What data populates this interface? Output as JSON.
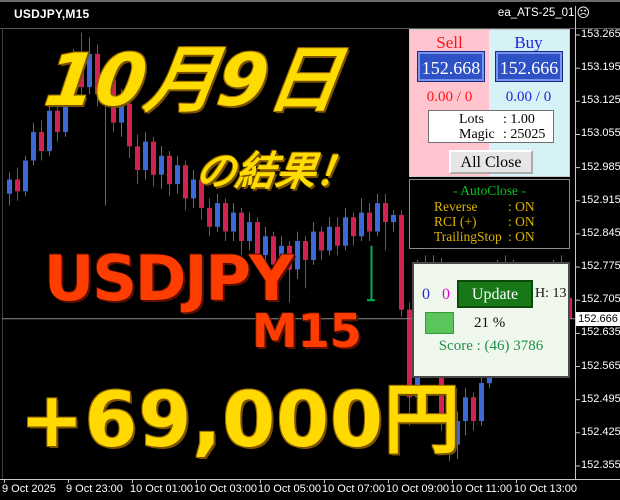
{
  "window": {
    "title": "USDJPY,M15",
    "ea_name": "ea_ATS-25_01",
    "ea_status_icon": "☹"
  },
  "overlay": {
    "date_text": "10月9日",
    "result_text": "の結果！",
    "symbol_text": "USDJPY",
    "timeframe_text": "M15",
    "profit_text": "+69,000円"
  },
  "trade_panel": {
    "sell_label": "Sell",
    "buy_label": "Buy",
    "sell_price": "152.668",
    "buy_price": "152.666",
    "sell_position": "0.00 / 0",
    "buy_position": "0.00 / 0",
    "lots_label": "Lots",
    "lots_value": ": 1.00",
    "magic_label": "Magic",
    "magic_value": ": 25025",
    "all_close_label": "All Close"
  },
  "autoclose_panel": {
    "title": "- AutoClose -",
    "rows": [
      {
        "label": "Reverse",
        "value": ": ON"
      },
      {
        "label": "RCI (+)",
        "value": ": ON"
      },
      {
        "label": "TrailingStop",
        "value": ": ON"
      }
    ]
  },
  "update_panel": {
    "count_blue": "0",
    "count_magenta": "0",
    "update_label": "Update",
    "h_label": "H: 13",
    "percent": "21 %",
    "score": "Score : (46) 3786"
  },
  "axis": {
    "price_labels": [
      "153.265",
      "153.195",
      "153.125",
      "153.055",
      "152.985",
      "152.915",
      "152.845",
      "152.775",
      "152.705",
      "152.635",
      "152.565",
      "152.495",
      "152.425",
      "152.355"
    ],
    "current_price_label": "152.666",
    "time_labels": [
      "9 Oct 2025",
      "9 Oct 23:00",
      "10 Oct 01:00",
      "10 Oct 03:00",
      "10 Oct 05:00",
      "10 Oct 07:00",
      "10 Oct 09:00",
      "10 Oct 11:00",
      "10 Oct 13:00"
    ]
  },
  "chart_data": {
    "type": "candlestick",
    "symbol": "USDJPY",
    "timeframe": "M15",
    "price_axis_top": 153.265,
    "price_axis_bottom": 152.355,
    "price_step": 0.07,
    "current_price": 152.666,
    "candles": [
      [
        152.93,
        152.975,
        152.905,
        152.96
      ],
      [
        152.96,
        152.985,
        152.915,
        152.935
      ],
      [
        152.935,
        153.01,
        152.925,
        153.0
      ],
      [
        153.0,
        153.08,
        152.99,
        153.06
      ],
      [
        153.06,
        153.085,
        153.0,
        153.02
      ],
      [
        153.02,
        153.125,
        153.01,
        153.105
      ],
      [
        153.105,
        153.125,
        153.04,
        153.06
      ],
      [
        153.06,
        153.175,
        153.05,
        153.155
      ],
      [
        153.155,
        153.235,
        153.145,
        153.215
      ],
      [
        153.215,
        153.27,
        153.13,
        153.155
      ],
      [
        153.155,
        153.26,
        153.14,
        153.225
      ],
      [
        153.225,
        153.245,
        153.115,
        153.14
      ],
      [
        153.14,
        153.2,
        152.905,
        153.17
      ],
      [
        153.17,
        153.185,
        153.06,
        153.08
      ],
      [
        153.08,
        153.15,
        153.05,
        153.12
      ],
      [
        153.12,
        153.135,
        153.005,
        153.03
      ],
      [
        153.03,
        153.055,
        152.95,
        152.98
      ],
      [
        152.98,
        153.06,
        152.96,
        153.04
      ],
      [
        153.04,
        153.05,
        152.945,
        152.97
      ],
      [
        152.97,
        153.03,
        152.94,
        153.01
      ],
      [
        153.01,
        153.02,
        152.925,
        152.95
      ],
      [
        152.95,
        153.01,
        152.93,
        152.99
      ],
      [
        152.99,
        153.0,
        152.895,
        152.92
      ],
      [
        152.92,
        152.98,
        152.9,
        152.96
      ],
      [
        152.96,
        152.97,
        152.875,
        152.9
      ],
      [
        152.9,
        152.92,
        152.84,
        152.86
      ],
      [
        152.86,
        152.93,
        152.85,
        152.91
      ],
      [
        152.91,
        152.92,
        152.83,
        152.85
      ],
      [
        152.85,
        152.91,
        152.83,
        152.89
      ],
      [
        152.89,
        152.9,
        152.8,
        152.83
      ],
      [
        152.83,
        152.89,
        152.81,
        152.87
      ],
      [
        152.87,
        152.88,
        152.78,
        152.8
      ],
      [
        152.8,
        152.86,
        152.78,
        152.84
      ],
      [
        152.84,
        152.85,
        152.75,
        152.78
      ],
      [
        152.78,
        152.84,
        152.76,
        152.82
      ],
      [
        152.82,
        152.83,
        152.7,
        152.77
      ],
      [
        152.77,
        152.85,
        152.75,
        152.83
      ],
      [
        152.83,
        152.84,
        152.73,
        152.79
      ],
      [
        152.79,
        152.87,
        152.78,
        152.85
      ],
      [
        152.85,
        152.86,
        152.79,
        152.81
      ],
      [
        152.81,
        152.88,
        152.8,
        152.86
      ],
      [
        152.86,
        152.88,
        152.8,
        152.82
      ],
      [
        152.82,
        152.9,
        152.81,
        152.88
      ],
      [
        152.88,
        152.89,
        152.82,
        152.84
      ],
      [
        152.84,
        152.92,
        152.83,
        152.89
      ],
      [
        152.89,
        152.91,
        152.83,
        152.85
      ],
      [
        152.85,
        152.93,
        152.84,
        152.91
      ],
      [
        152.91,
        152.93,
        152.81,
        152.87
      ],
      [
        152.87,
        152.895,
        152.85,
        152.885
      ],
      [
        152.885,
        152.895,
        152.67,
        152.685
      ],
      [
        152.685,
        152.7,
        152.44,
        152.5
      ],
      [
        152.5,
        152.79,
        152.48,
        152.77
      ],
      [
        152.77,
        152.8,
        152.54,
        152.56
      ],
      [
        152.56,
        152.8,
        152.55,
        152.78
      ],
      [
        152.78,
        152.795,
        152.43,
        152.45
      ],
      [
        152.45,
        152.48,
        152.365,
        152.4
      ],
      [
        152.4,
        152.47,
        152.37,
        152.45
      ],
      [
        152.45,
        152.52,
        152.42,
        152.5
      ],
      [
        152.5,
        152.51,
        152.43,
        152.45
      ],
      [
        152.45,
        152.55,
        152.44,
        152.53
      ],
      [
        152.53,
        152.62,
        152.52,
        152.6
      ],
      [
        152.6,
        152.79,
        152.59,
        152.77
      ],
      [
        152.77,
        152.8,
        152.65,
        152.67
      ],
      [
        152.67,
        152.79,
        152.62,
        152.64
      ],
      [
        152.64,
        152.68,
        152.58,
        152.6
      ],
      [
        152.6,
        152.66,
        152.58,
        152.64
      ],
      [
        152.64,
        152.72,
        152.63,
        152.7
      ],
      [
        152.7,
        152.76,
        152.66,
        152.74
      ],
      [
        152.74,
        152.79,
        152.7,
        152.77
      ],
      [
        152.77,
        152.8,
        152.69,
        152.71
      ],
      [
        152.71,
        152.74,
        152.63,
        152.666
      ]
    ],
    "signal_marker": {
      "candle_index": 45,
      "price_high": 152.82,
      "price_low": 152.705,
      "color": "#00b050"
    }
  },
  "colors": {
    "bull": "#3d68d8",
    "bear": "#d42250",
    "bid_line": "#8c8c8c",
    "axis_line": "#c8c8c8",
    "accent_yellow": "#ffdc00",
    "accent_orange_red": "#ff3d00"
  }
}
